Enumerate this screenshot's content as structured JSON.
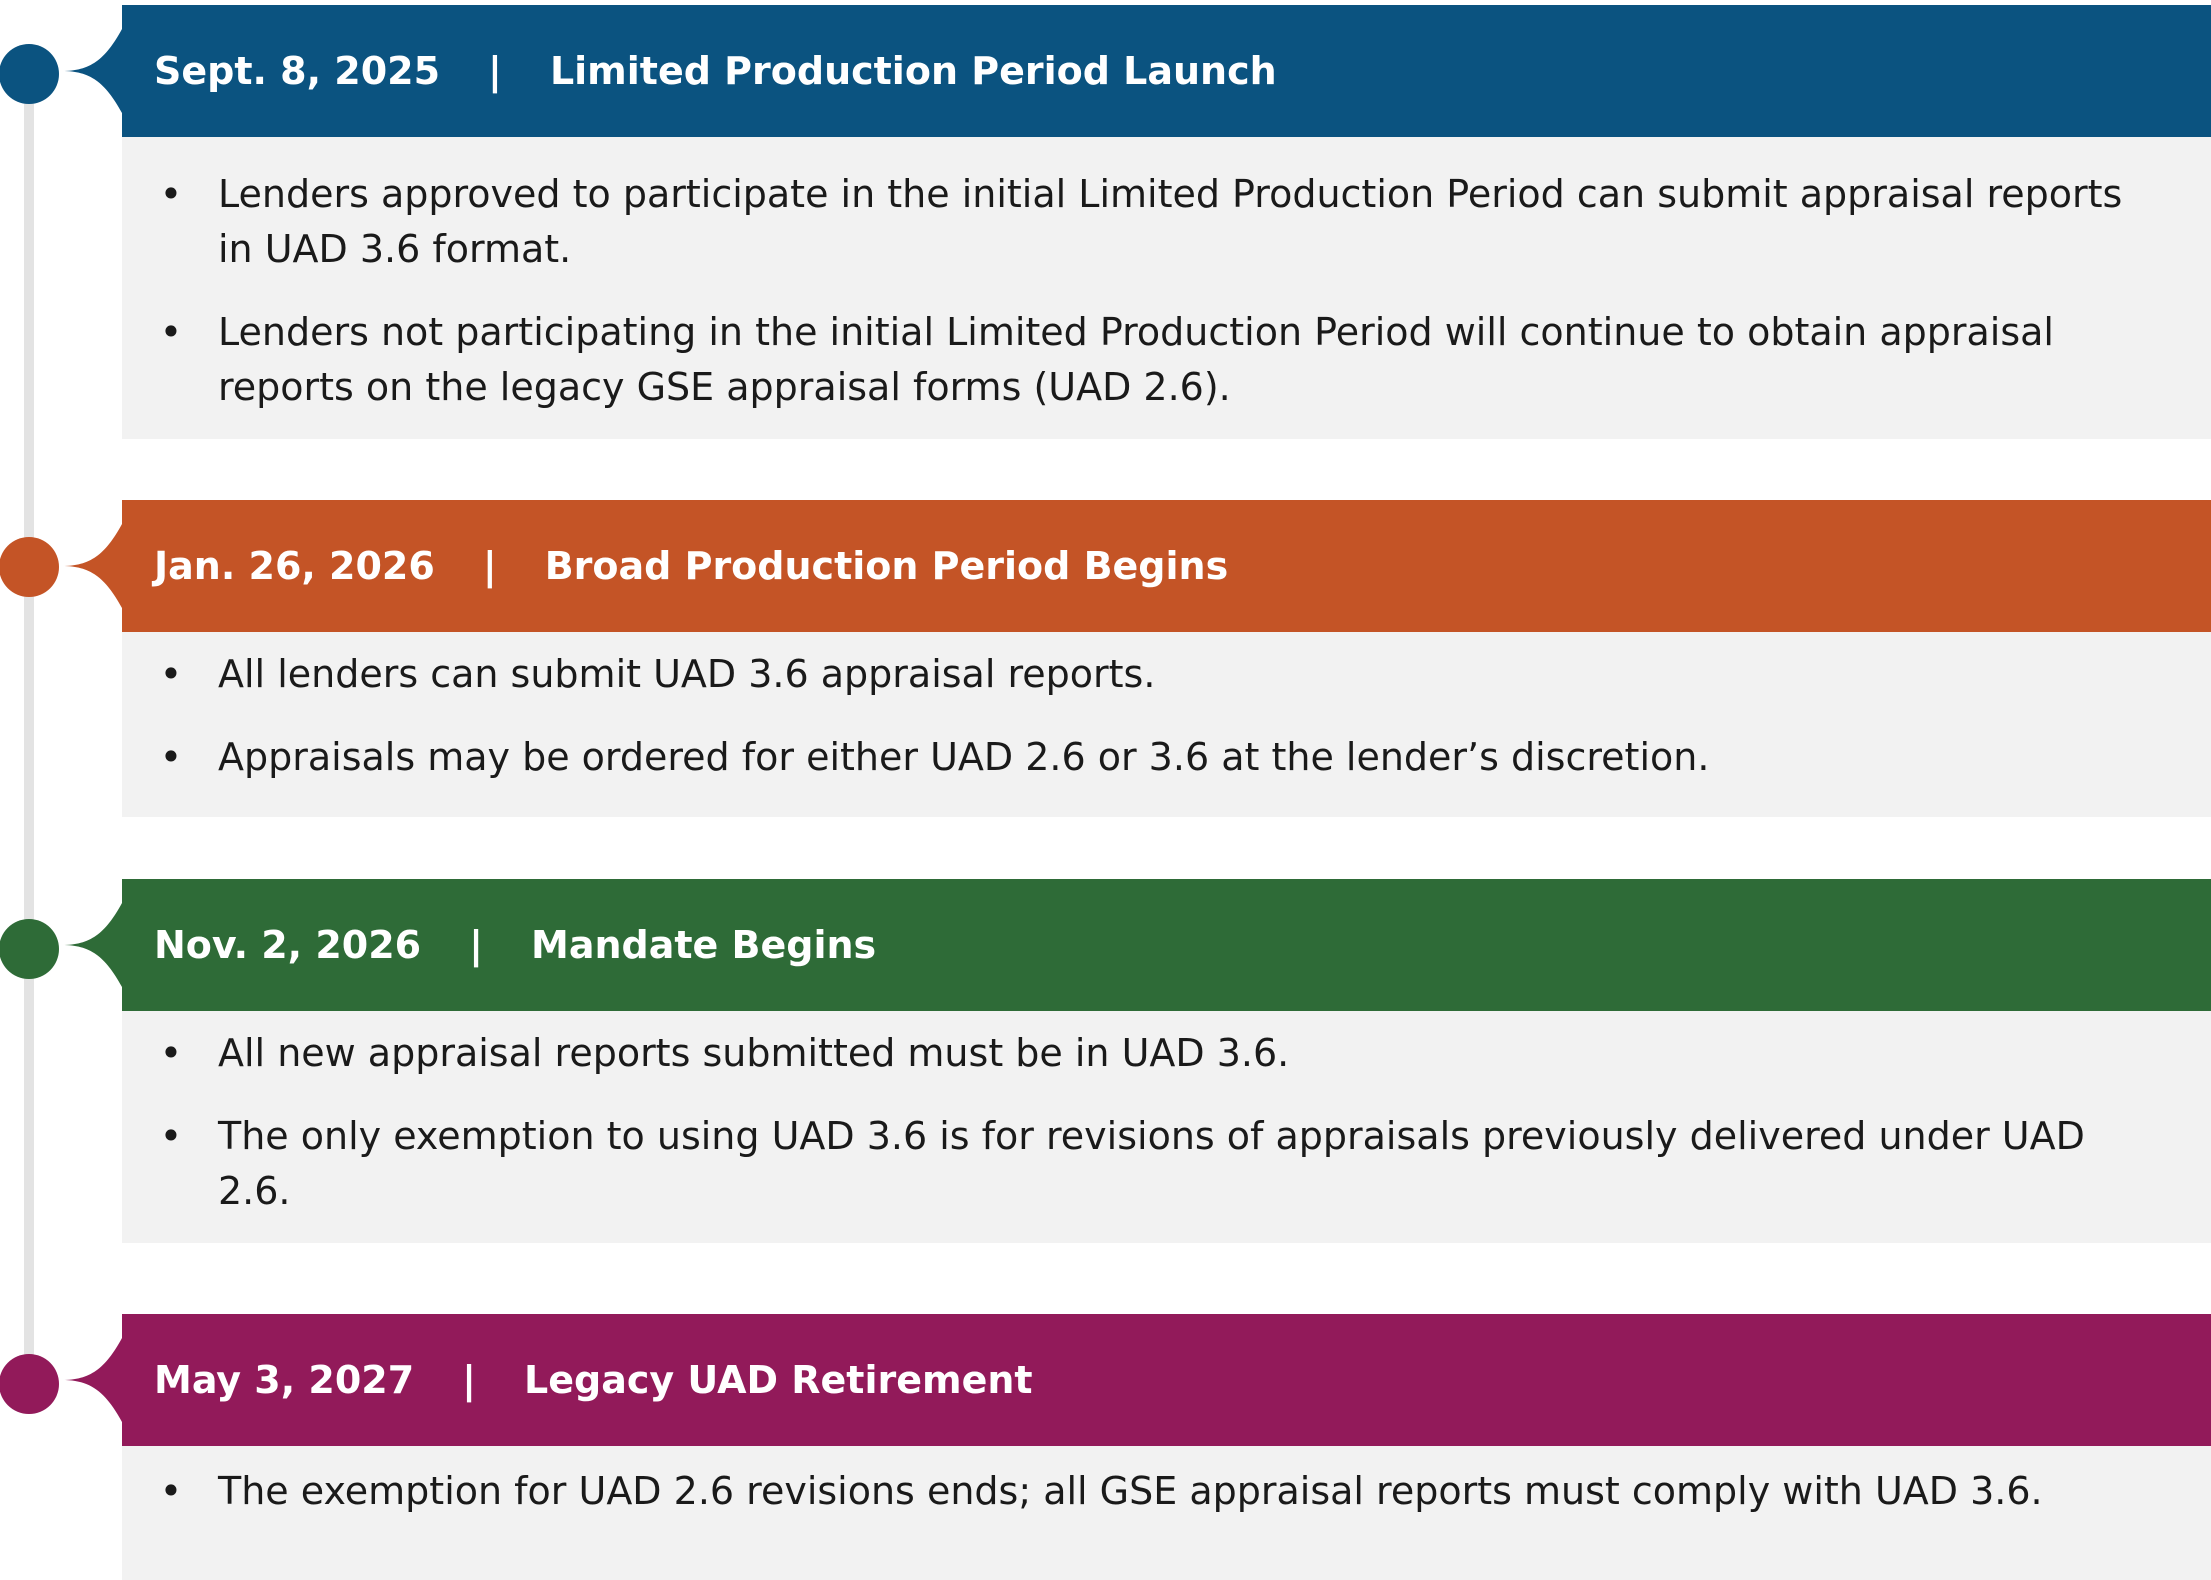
{
  "milestones": [
    {
      "date": "Sept. 8, 2025",
      "separator": "|",
      "title": "Limited Production Period Launch",
      "color": "#0b5380",
      "bullets": [
        "Lenders approved to participate in the initial Limited Production Period can submit appraisal reports in UAD 3.6 format.",
        "Lenders not participating in the initial Limited Production Period will continue to obtain appraisal reports on the legacy GSE appraisal forms (UAD 2.6)."
      ]
    },
    {
      "date": "Jan. 26, 2026",
      "separator": "|",
      "title": "Broad Production Period Begins",
      "color": "#c45426",
      "bullets": [
        "All lenders can submit UAD 3.6 appraisal reports.",
        "Appraisals may be ordered for either UAD 2.6 or 3.6 at the lender’s discretion."
      ]
    },
    {
      "date": "Nov. 2, 2026",
      "separator": "|",
      "title": "Mandate Begins",
      "color": "#2e6b37",
      "bullets": [
        "All new appraisal reports submitted must be in UAD 3.6.",
        "The only exemption to using UAD 3.6 is for revisions of appraisals previously delivered under UAD 2.6."
      ]
    },
    {
      "date": "May 3, 2027",
      "separator": "|",
      "title": "Legacy UAD Retirement",
      "color": "#921a5a",
      "bullets": [
        "The exemption for UAD 2.6 revisions ends; all GSE appraisal reports must comply with UAD 3.6."
      ]
    }
  ],
  "bullet_symbol": "•"
}
